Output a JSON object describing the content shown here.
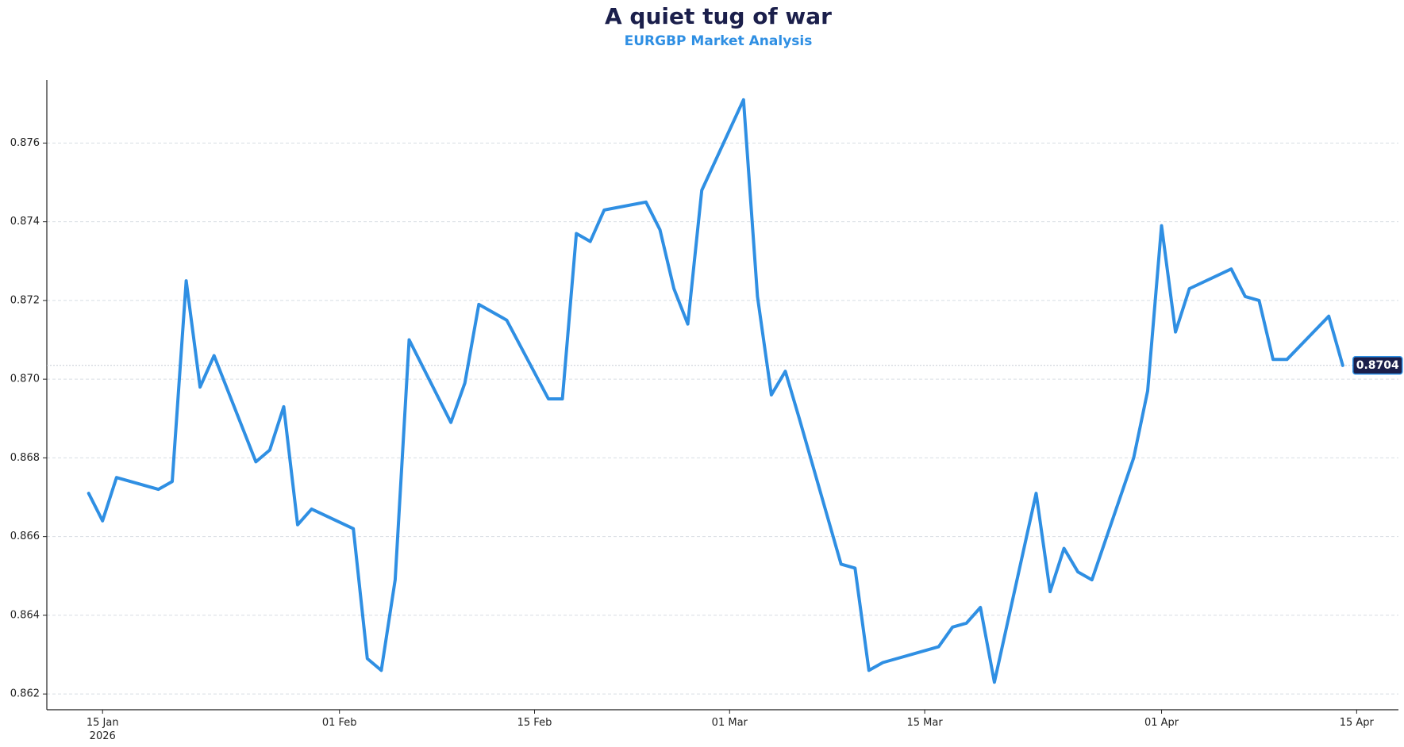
{
  "chart_data": {
    "type": "line",
    "title": "A quiet tug of war",
    "subtitle": "EURGBP Market Analysis",
    "xlabel": "",
    "ylabel": "",
    "ylim": [
      0.8616,
      0.8776
    ],
    "xlim": [
      "2026-01-11",
      "2026-04-18"
    ],
    "grid": "horizontal dashed",
    "legend": "none",
    "colors": {
      "line": "#2f8fe3",
      "badge_bg": "#1b1f4b",
      "badge_border": "#2f8fe3",
      "title": "#1b1f4b",
      "subtitle": "#2f8fe3",
      "grid": "#d8dde3"
    },
    "y_ticks": [
      {
        "value": 0.862,
        "label": "0.862"
      },
      {
        "value": 0.864,
        "label": "0.864"
      },
      {
        "value": 0.866,
        "label": "0.866"
      },
      {
        "value": 0.868,
        "label": "0.868"
      },
      {
        "value": 0.87,
        "label": "0.870"
      },
      {
        "value": 0.872,
        "label": "0.872"
      },
      {
        "value": 0.874,
        "label": "0.874"
      },
      {
        "value": 0.876,
        "label": "0.876"
      }
    ],
    "x_ticks": [
      {
        "date": "2026-01-15",
        "label": "15 Jan",
        "sublabel": "2026"
      },
      {
        "date": "2026-02-01",
        "label": "01 Feb",
        "sublabel": ""
      },
      {
        "date": "2026-02-15",
        "label": "15 Feb",
        "sublabel": ""
      },
      {
        "date": "2026-03-01",
        "label": "01 Mar",
        "sublabel": ""
      },
      {
        "date": "2026-03-15",
        "label": "15 Mar",
        "sublabel": ""
      },
      {
        "date": "2026-04-01",
        "label": "01 Apr",
        "sublabel": ""
      },
      {
        "date": "2026-04-15",
        "label": "15 Apr",
        "sublabel": ""
      }
    ],
    "last_value_label": "0.8704",
    "last_value": 0.87035,
    "series": [
      {
        "name": "",
        "x": [
          "2026-01-14",
          "2026-01-15",
          "2026-01-16",
          "2026-01-19",
          "2026-01-20",
          "2026-01-21",
          "2026-01-22",
          "2026-01-23",
          "2026-01-26",
          "2026-01-27",
          "2026-01-28",
          "2026-01-29",
          "2026-01-30",
          "2026-02-02",
          "2026-02-03",
          "2026-02-04",
          "2026-02-05",
          "2026-02-06",
          "2026-02-09",
          "2026-02-10",
          "2026-02-11",
          "2026-02-12",
          "2026-02-13",
          "2026-02-16",
          "2026-02-17",
          "2026-02-18",
          "2026-02-19",
          "2026-02-20",
          "2026-02-23",
          "2026-02-24",
          "2026-02-25",
          "2026-02-26",
          "2026-02-27",
          "2026-03-02",
          "2026-03-03",
          "2026-03-04",
          "2026-03-05",
          "2026-03-06",
          "2026-03-09",
          "2026-03-10",
          "2026-03-11",
          "2026-03-12",
          "2026-03-13",
          "2026-03-16",
          "2026-03-17",
          "2026-03-18",
          "2026-03-19",
          "2026-03-20",
          "2026-03-23",
          "2026-03-24",
          "2026-03-25",
          "2026-03-26",
          "2026-03-27",
          "2026-03-30",
          "2026-03-31",
          "2026-04-01",
          "2026-04-02",
          "2026-04-03",
          "2026-04-06",
          "2026-04-07",
          "2026-04-08",
          "2026-04-09",
          "2026-04-10",
          "2026-04-13",
          "2026-04-14"
        ],
        "values": [
          0.8671,
          0.8664,
          0.8675,
          0.8672,
          0.8674,
          0.8725,
          0.8698,
          0.8706,
          0.8679,
          0.8682,
          0.8693,
          0.8663,
          0.8667,
          0.8662,
          0.8629,
          0.8626,
          0.8649,
          0.871,
          0.8689,
          0.8699,
          0.8719,
          0.8717,
          0.8715,
          0.8695,
          0.8695,
          0.8737,
          0.8735,
          0.8743,
          0.8745,
          0.8738,
          0.8723,
          0.8714,
          0.8748,
          0.8771,
          0.8721,
          0.8696,
          0.8702,
          0.869,
          0.8653,
          0.8652,
          0.8626,
          0.8628,
          0.8629,
          0.8632,
          0.8637,
          0.8638,
          0.8642,
          0.8623,
          0.8671,
          0.8646,
          0.8657,
          0.8651,
          0.8649,
          0.868,
          0.8697,
          0.8739,
          0.8712,
          0.8723,
          0.8728,
          0.8721,
          0.872,
          0.8705,
          0.8705,
          0.8716,
          0.87035
        ]
      }
    ]
  }
}
